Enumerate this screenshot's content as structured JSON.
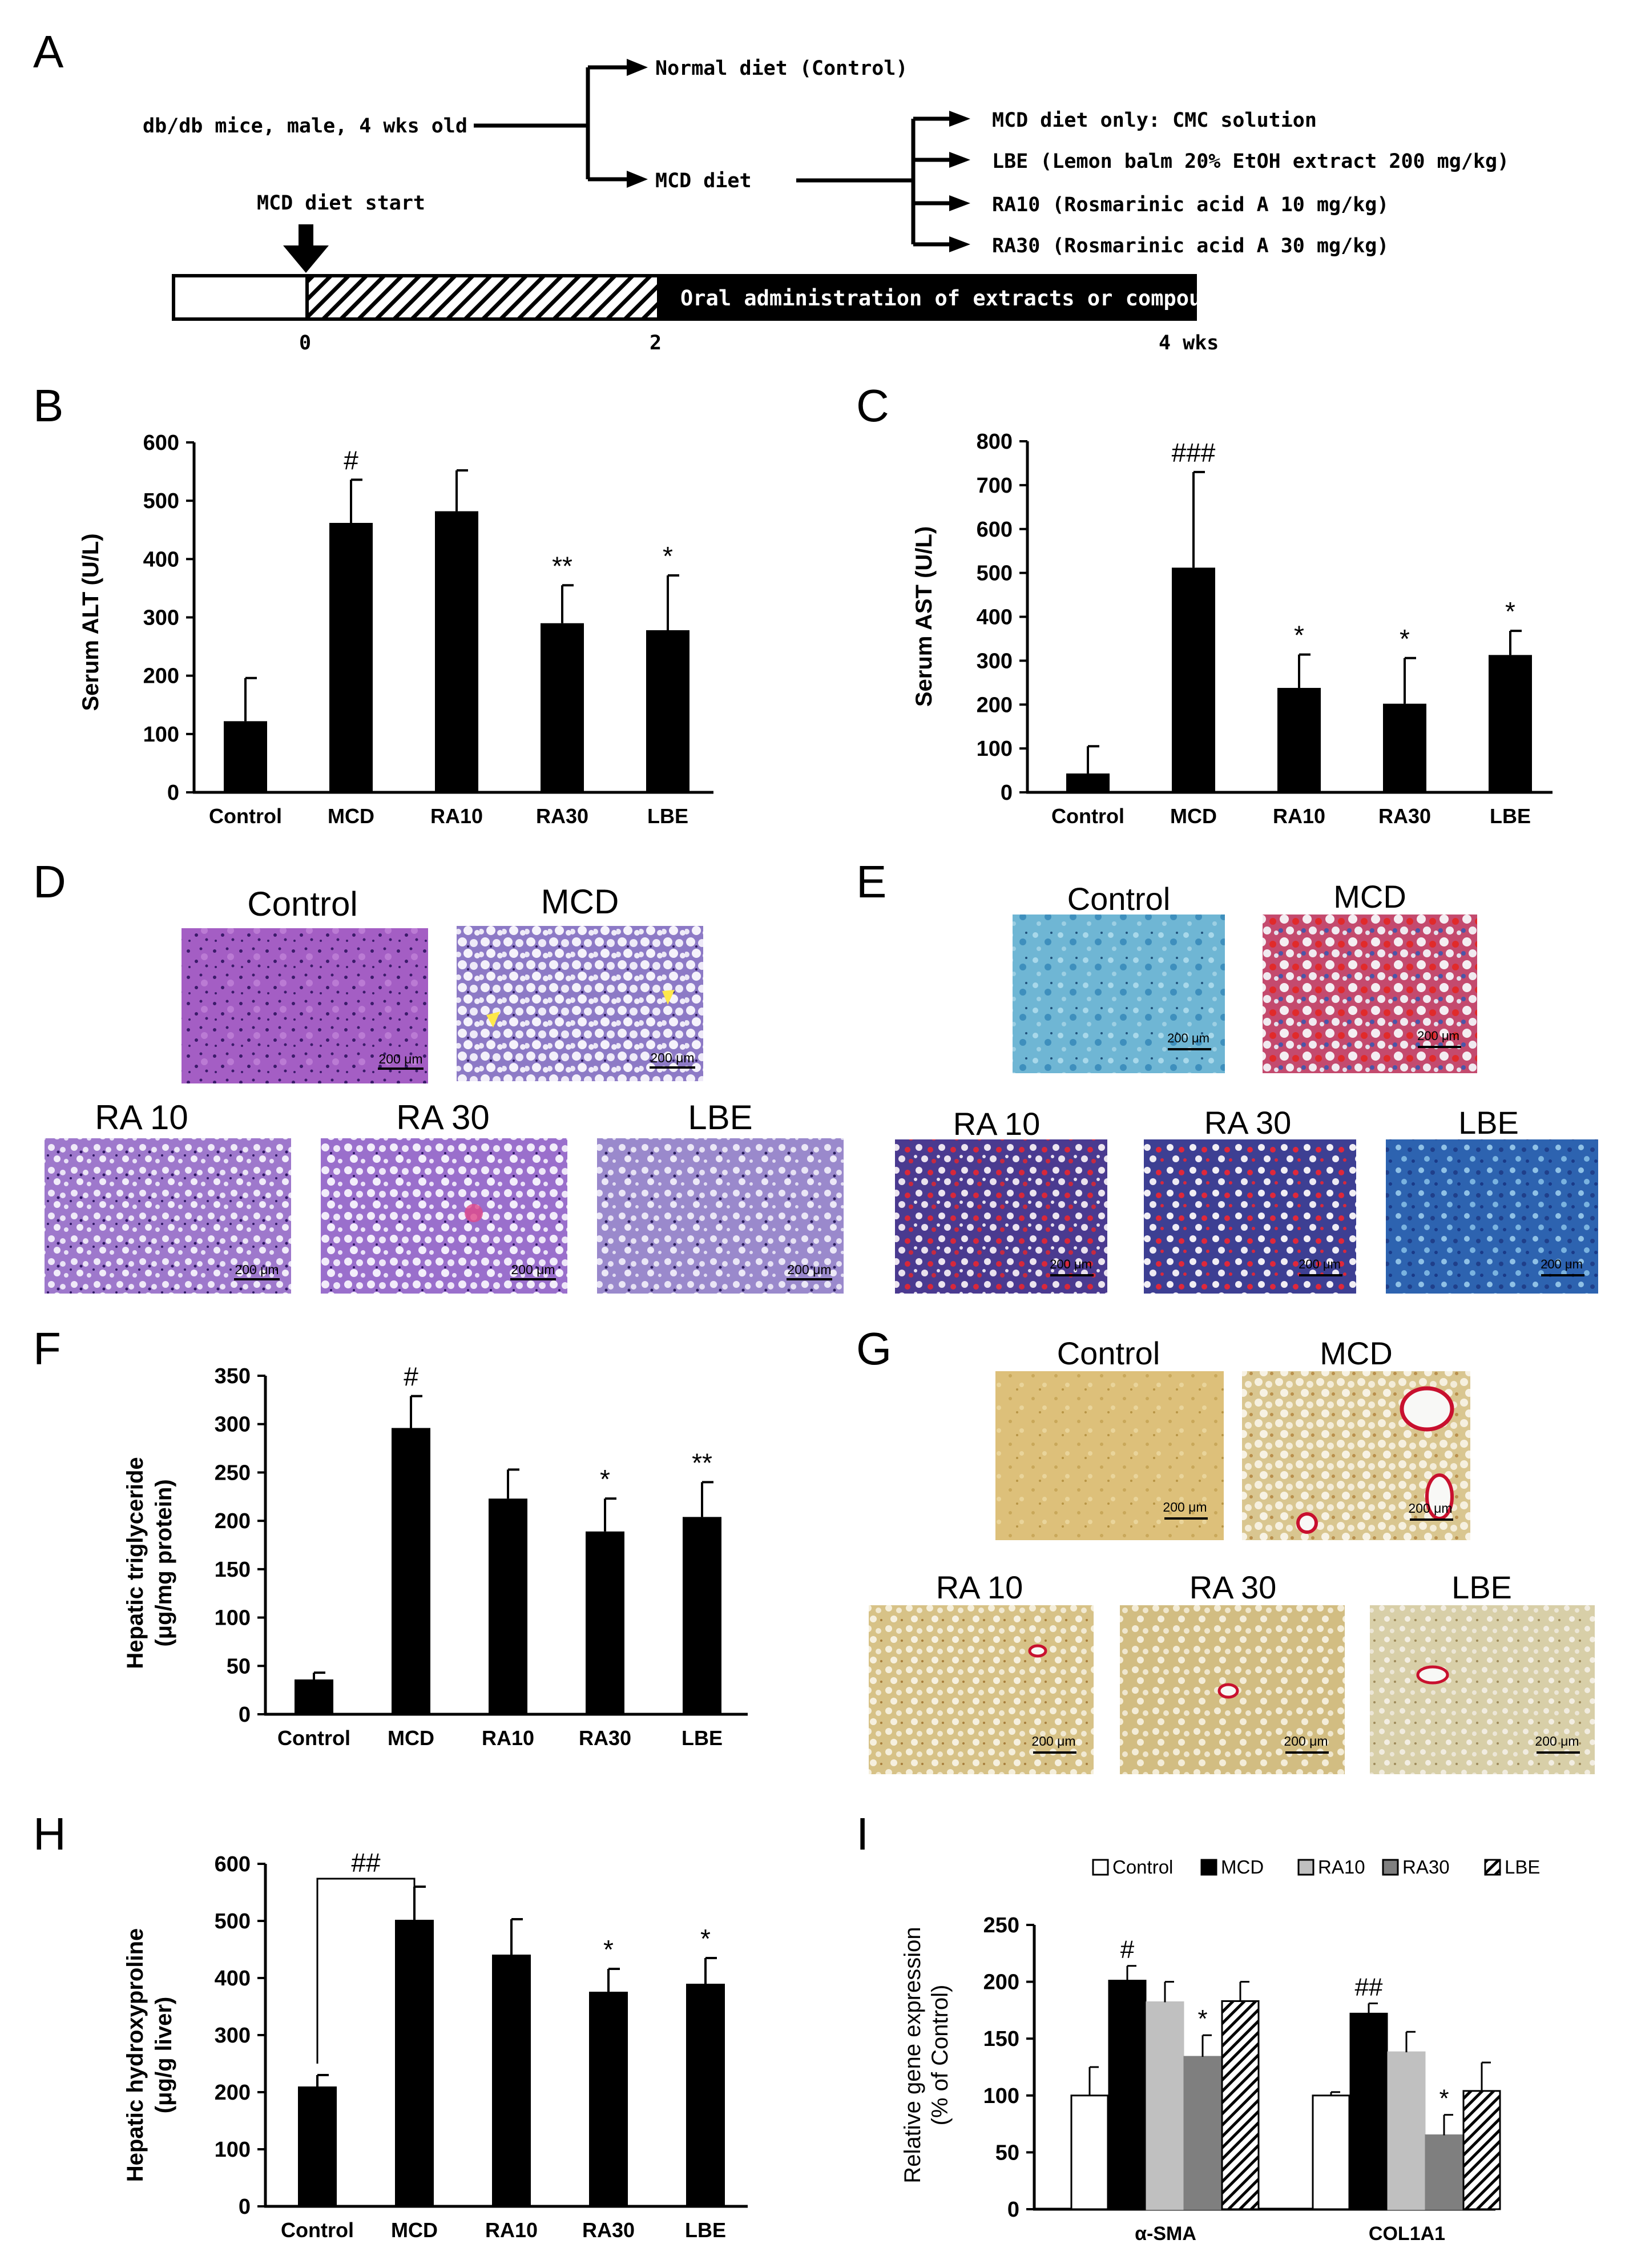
{
  "colors": {
    "bar": "#000000",
    "axis": "#000000",
    "ra10_bar": "#c0c0c0",
    "ra30_bar": "#7f7f7f",
    "hatch": "#000000"
  },
  "panel_letters": {
    "a": "A",
    "b": "B",
    "c": "C",
    "d": "D",
    "e": "E",
    "f": "F",
    "g": "G",
    "h": "H",
    "i": "I"
  },
  "scheme": {
    "start_group": "db/db mice, male, 4 wks old",
    "normal_branch": "Normal diet (Control)",
    "mcd_branch": "MCD diet",
    "treatments": [
      "MCD diet only: CMC solution",
      "LBE (Lemon balm 20% EtOH extract 200 mg/kg)",
      "RA10 (Rosmarinic acid A 10 mg/kg)",
      "RA30 (Rosmarinic acid A 30 mg/kg)"
    ],
    "start_label": "MCD diet start",
    "timeline_bar_text": "Oral administration of extracts or compounds",
    "timeline_ticks": [
      "0",
      "2",
      "4 wks"
    ]
  },
  "images_d": {
    "labels": [
      "Control",
      "MCD",
      "RA 10",
      "RA 30",
      "LBE"
    ],
    "scalebar": "200 μm"
  },
  "images_e": {
    "labels": [
      "Control",
      "MCD",
      "RA 10",
      "RA 30",
      "LBE"
    ],
    "scalebar": "200 μm"
  },
  "images_g": {
    "labels": [
      "Control",
      "MCD",
      "RA 10",
      "RA 30",
      "LBE"
    ],
    "scalebar": "200 μm"
  },
  "chart_data": [
    {
      "panel": "B",
      "type": "bar",
      "categories": [
        "Control",
        "MCD",
        "RA10",
        "RA30",
        "LBE"
      ],
      "values": [
        122,
        462,
        482,
        290,
        278
      ],
      "errors": [
        74,
        74,
        70,
        65,
        94
      ],
      "annotations": [
        "",
        "#",
        "",
        "**",
        "*"
      ],
      "ylabel": "Serum ALT (U/L)",
      "ylim": [
        0,
        600
      ],
      "yticks": [
        "0",
        "100",
        "200",
        "300",
        "400",
        "500",
        "600"
      ]
    },
    {
      "panel": "C",
      "type": "bar",
      "categories": [
        "Control",
        "MCD",
        "RA10",
        "RA30",
        "LBE"
      ],
      "values": [
        43,
        512,
        238,
        202,
        313
      ],
      "errors": [
        62,
        218,
        76,
        104,
        55
      ],
      "annotations": [
        "",
        "###",
        "*",
        "*",
        "*"
      ],
      "ylabel": "Serum AST (U/L)",
      "ylim": [
        0,
        800
      ],
      "yticks": [
        "0",
        "100",
        "200",
        "300",
        "400",
        "500",
        "600",
        "700",
        "800"
      ]
    },
    {
      "panel": "F",
      "type": "bar",
      "categories": [
        "Control",
        "MCD",
        "RA10",
        "RA30",
        "LBE"
      ],
      "values": [
        36,
        296,
        223,
        189,
        204
      ],
      "errors": [
        7,
        33,
        30,
        34,
        36
      ],
      "annotations": [
        "",
        "#",
        "",
        "*",
        "**"
      ],
      "ylabel": "Hepatic triglyceride",
      "ylabel2": "(μg/mg protein)",
      "ylim": [
        0,
        350
      ],
      "yticks": [
        "0",
        "50",
        "100",
        "150",
        "200",
        "250",
        "300",
        "350"
      ]
    },
    {
      "panel": "H",
      "type": "bar",
      "categories": [
        "Control",
        "MCD",
        "RA10",
        "RA30",
        "LBE"
      ],
      "values": [
        210,
        502,
        441,
        376,
        390
      ],
      "errors": [
        20,
        58,
        62,
        40,
        45
      ],
      "annotations": [
        "",
        "",
        "",
        "*",
        "*"
      ],
      "bracket_label": "##",
      "ylabel": "Hepatic hydroxyproline",
      "ylabel2": "(μg/g liver)",
      "ylim": [
        0,
        600
      ],
      "yticks": [
        "0",
        "100",
        "200",
        "300",
        "400",
        "500",
        "600"
      ]
    },
    {
      "panel": "I",
      "type": "bar",
      "categories": [
        "α-SMA",
        "COL1A1"
      ],
      "series": [
        {
          "name": "Control",
          "values": [
            100,
            100
          ],
          "errors": [
            25,
            3
          ],
          "annotations": [
            "",
            ""
          ]
        },
        {
          "name": "MCD",
          "values": [
            201,
            172
          ],
          "errors": [
            13,
            9
          ],
          "annotations": [
            "#",
            "##"
          ]
        },
        {
          "name": "RA10",
          "values": [
            182,
            138
          ],
          "errors": [
            18,
            18
          ],
          "annotations": [
            "",
            ""
          ]
        },
        {
          "name": "RA30",
          "values": [
            134,
            65
          ],
          "errors": [
            19,
            18
          ],
          "annotations": [
            "*",
            "*"
          ]
        },
        {
          "name": "LBE",
          "values": [
            183,
            104
          ],
          "errors": [
            17,
            25
          ],
          "annotations": [
            "",
            ""
          ]
        }
      ],
      "ylabel": "Relative gene expression",
      "ylabel2": "(% of Control)",
      "ylim": [
        0,
        250
      ],
      "yticks": [
        "0",
        "50",
        "100",
        "150",
        "200",
        "250"
      ]
    }
  ]
}
